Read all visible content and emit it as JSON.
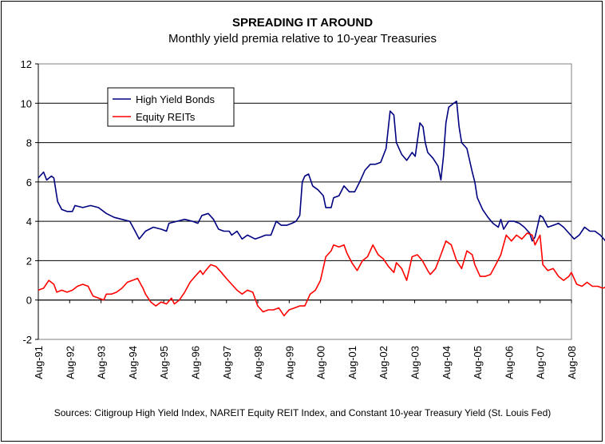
{
  "chart_data": {
    "type": "line",
    "title": "SPREADING IT AROUND",
    "subtitle": "Monthly yield premia relative to 10-year Treasuries",
    "source": "Sources: Citigroup High Yield Index, NAREIT Equity REIT Index, and Constant 10-year Treasury Yield (St. Louis Fed)",
    "ylim": [
      -2,
      12
    ],
    "yticks": [
      "-2",
      "0",
      "2",
      "4",
      "6",
      "8",
      "10",
      "12"
    ],
    "xtick_labels": [
      "Aug-91",
      "Aug-92",
      "Aug-93",
      "Aug-94",
      "Aug-95",
      "Aug-96",
      "Aug-97",
      "Aug-98",
      "Aug-99",
      "Aug-00",
      "Aug-01",
      "Aug-02",
      "Aug-03",
      "Aug-04",
      "Aug-05",
      "Aug-06",
      "Aug-07",
      "Aug-08"
    ],
    "grid": "horizontal",
    "legend_position": "upper-left",
    "x_start_year": 1991.583,
    "series": [
      {
        "name": "High Yield Bonds",
        "color": "#000080",
        "points": [
          [
            1991.58,
            6.2
          ],
          [
            1991.75,
            6.5
          ],
          [
            1991.85,
            6.1
          ],
          [
            1992.0,
            6.3
          ],
          [
            1992.08,
            6.2
          ],
          [
            1992.2,
            5.0
          ],
          [
            1992.33,
            4.6
          ],
          [
            1992.5,
            4.5
          ],
          [
            1992.67,
            4.5
          ],
          [
            1992.75,
            4.8
          ],
          [
            1993.0,
            4.7
          ],
          [
            1993.25,
            4.8
          ],
          [
            1993.5,
            4.7
          ],
          [
            1993.75,
            4.4
          ],
          [
            1994.0,
            4.2
          ],
          [
            1994.25,
            4.1
          ],
          [
            1994.5,
            4.0
          ],
          [
            1994.67,
            3.5
          ],
          [
            1994.8,
            3.1
          ],
          [
            1995.0,
            3.5
          ],
          [
            1995.25,
            3.7
          ],
          [
            1995.5,
            3.6
          ],
          [
            1995.67,
            3.5
          ],
          [
            1995.75,
            3.9
          ],
          [
            1996.0,
            4.0
          ],
          [
            1996.25,
            4.1
          ],
          [
            1996.5,
            4.0
          ],
          [
            1996.67,
            3.9
          ],
          [
            1996.8,
            4.3
          ],
          [
            1997.0,
            4.4
          ],
          [
            1997.17,
            4.1
          ],
          [
            1997.33,
            3.6
          ],
          [
            1997.5,
            3.5
          ],
          [
            1997.67,
            3.5
          ],
          [
            1997.75,
            3.3
          ],
          [
            1997.92,
            3.5
          ],
          [
            1998.08,
            3.1
          ],
          [
            1998.25,
            3.3
          ],
          [
            1998.5,
            3.1
          ],
          [
            1998.67,
            3.2
          ],
          [
            1998.83,
            3.3
          ],
          [
            1999.0,
            3.3
          ],
          [
            1999.17,
            4.0
          ],
          [
            1999.33,
            3.8
          ],
          [
            1999.5,
            3.8
          ],
          [
            1999.67,
            3.9
          ],
          [
            1999.8,
            4.0
          ],
          [
            1999.92,
            4.3
          ],
          [
            2000.0,
            6.0
          ],
          [
            2000.08,
            6.3
          ],
          [
            2000.2,
            6.4
          ],
          [
            2000.33,
            5.8
          ],
          [
            2000.5,
            5.6
          ],
          [
            2000.67,
            5.3
          ],
          [
            2000.75,
            4.7
          ],
          [
            2000.92,
            4.7
          ],
          [
            2001.0,
            5.2
          ],
          [
            2001.17,
            5.3
          ],
          [
            2001.33,
            5.8
          ],
          [
            2001.5,
            5.5
          ],
          [
            2001.67,
            5.5
          ],
          [
            2001.83,
            6.0
          ],
          [
            2002.0,
            6.6
          ],
          [
            2002.17,
            6.9
          ],
          [
            2002.33,
            6.9
          ],
          [
            2002.5,
            7.0
          ],
          [
            2002.67,
            7.7
          ],
          [
            2002.8,
            9.6
          ],
          [
            2002.92,
            9.4
          ],
          [
            2003.0,
            8.0
          ],
          [
            2003.17,
            7.4
          ],
          [
            2003.33,
            7.1
          ],
          [
            2003.5,
            7.5
          ],
          [
            2003.6,
            7.3
          ],
          [
            2003.75,
            9.0
          ],
          [
            2003.85,
            8.8
          ],
          [
            2003.92,
            8.0
          ],
          [
            2004.0,
            7.5
          ],
          [
            2004.17,
            7.2
          ],
          [
            2004.33,
            6.8
          ],
          [
            2004.42,
            6.1
          ],
          [
            2004.5,
            7.3
          ],
          [
            2004.58,
            9.0
          ],
          [
            2004.67,
            9.8
          ],
          [
            2004.83,
            10.0
          ],
          [
            2004.92,
            10.1
          ],
          [
            2005.0,
            8.8
          ],
          [
            2005.08,
            8.0
          ],
          [
            2005.25,
            7.7
          ],
          [
            2005.42,
            6.5
          ],
          [
            2005.5,
            6.0
          ],
          [
            2005.58,
            5.2
          ],
          [
            2005.75,
            4.6
          ],
          [
            2005.92,
            4.2
          ],
          [
            2006.08,
            3.9
          ],
          [
            2006.25,
            3.7
          ],
          [
            2006.33,
            4.1
          ],
          [
            2006.42,
            3.6
          ],
          [
            2006.58,
            4.0
          ],
          [
            2006.75,
            4.0
          ],
          [
            2006.92,
            3.9
          ],
          [
            2007.08,
            3.7
          ],
          [
            2007.25,
            3.4
          ],
          [
            2007.33,
            3.0
          ],
          [
            2007.42,
            3.2
          ],
          [
            2007.58,
            4.3
          ],
          [
            2007.67,
            4.2
          ],
          [
            2007.83,
            3.7
          ],
          [
            2008.0,
            3.8
          ],
          [
            2008.17,
            3.9
          ],
          [
            2008.33,
            3.7
          ],
          [
            2008.5,
            3.4
          ],
          [
            2008.67,
            3.1
          ],
          [
            2008.83,
            3.3
          ],
          [
            2009.0,
            3.7
          ],
          [
            2009.17,
            3.5
          ],
          [
            2009.33,
            3.5
          ],
          [
            2009.5,
            3.3
          ],
          [
            2009.67,
            3.0
          ],
          [
            2009.83,
            3.0
          ],
          [
            2010.0,
            2.9
          ],
          [
            2010.08,
            2.6
          ],
          [
            2010.17,
            2.7
          ],
          [
            2010.33,
            3.5
          ],
          [
            2010.42,
            4.4
          ],
          [
            2010.5,
            4.4
          ],
          [
            2010.58,
            4.2
          ],
          [
            2010.67,
            4.6
          ],
          [
            2010.83,
            5.4
          ],
          [
            2011.0,
            6.2
          ],
          [
            2011.17,
            7.1
          ],
          [
            2011.25,
            7.2
          ],
          [
            2011.33,
            6.3
          ],
          [
            2011.42,
            6.0
          ],
          [
            2011.5,
            6.1
          ],
          [
            2011.58,
            7.0
          ],
          [
            2011.67,
            7.7
          ]
        ]
      },
      {
        "name": "Equity REITs",
        "color": "#ff0000",
        "points": [
          [
            1991.58,
            0.5
          ],
          [
            1991.75,
            0.6
          ],
          [
            1991.92,
            1.0
          ],
          [
            1992.08,
            0.8
          ],
          [
            1992.17,
            0.4
          ],
          [
            1992.33,
            0.5
          ],
          [
            1992.5,
            0.4
          ],
          [
            1992.67,
            0.5
          ],
          [
            1992.83,
            0.7
          ],
          [
            1993.0,
            0.8
          ],
          [
            1993.17,
            0.7
          ],
          [
            1993.33,
            0.2
          ],
          [
            1993.5,
            0.1
          ],
          [
            1993.67,
            0.0
          ],
          [
            1993.75,
            0.3
          ],
          [
            1993.92,
            0.3
          ],
          [
            1994.08,
            0.4
          ],
          [
            1994.25,
            0.6
          ],
          [
            1994.42,
            0.9
          ],
          [
            1994.58,
            1.0
          ],
          [
            1994.75,
            1.1
          ],
          [
            1994.92,
            0.6
          ],
          [
            1995.0,
            0.3
          ],
          [
            1995.17,
            -0.1
          ],
          [
            1995.33,
            -0.3
          ],
          [
            1995.5,
            -0.1
          ],
          [
            1995.67,
            -0.2
          ],
          [
            1995.83,
            0.1
          ],
          [
            1995.92,
            -0.2
          ],
          [
            1996.08,
            0.0
          ],
          [
            1996.25,
            0.4
          ],
          [
            1996.42,
            0.9
          ],
          [
            1996.58,
            1.2
          ],
          [
            1996.75,
            1.5
          ],
          [
            1996.83,
            1.3
          ],
          [
            1996.92,
            1.5
          ],
          [
            1997.08,
            1.8
          ],
          [
            1997.25,
            1.7
          ],
          [
            1997.42,
            1.4
          ],
          [
            1997.58,
            1.1
          ],
          [
            1997.75,
            0.8
          ],
          [
            1997.92,
            0.5
          ],
          [
            1998.08,
            0.3
          ],
          [
            1998.25,
            0.5
          ],
          [
            1998.42,
            0.4
          ],
          [
            1998.58,
            -0.3
          ],
          [
            1998.75,
            -0.6
          ],
          [
            1998.92,
            -0.5
          ],
          [
            1999.08,
            -0.5
          ],
          [
            1999.25,
            -0.4
          ],
          [
            1999.42,
            -0.8
          ],
          [
            1999.58,
            -0.5
          ],
          [
            1999.75,
            -0.4
          ],
          [
            1999.92,
            -0.3
          ],
          [
            2000.08,
            -0.3
          ],
          [
            2000.25,
            0.3
          ],
          [
            2000.42,
            0.5
          ],
          [
            2000.58,
            1.0
          ],
          [
            2000.75,
            2.2
          ],
          [
            2000.92,
            2.5
          ],
          [
            2001.0,
            2.8
          ],
          [
            2001.17,
            2.7
          ],
          [
            2001.33,
            2.8
          ],
          [
            2001.42,
            2.4
          ],
          [
            2001.58,
            1.9
          ],
          [
            2001.75,
            1.5
          ],
          [
            2001.92,
            2.0
          ],
          [
            2002.08,
            2.2
          ],
          [
            2002.25,
            2.8
          ],
          [
            2002.42,
            2.3
          ],
          [
            2002.58,
            2.1
          ],
          [
            2002.75,
            1.7
          ],
          [
            2002.92,
            1.4
          ],
          [
            2003.0,
            1.9
          ],
          [
            2003.17,
            1.6
          ],
          [
            2003.33,
            1.0
          ],
          [
            2003.5,
            2.2
          ],
          [
            2003.67,
            2.3
          ],
          [
            2003.83,
            2.0
          ],
          [
            2004.0,
            1.5
          ],
          [
            2004.08,
            1.3
          ],
          [
            2004.25,
            1.6
          ],
          [
            2004.42,
            2.3
          ],
          [
            2004.58,
            3.0
          ],
          [
            2004.75,
            2.8
          ],
          [
            2004.92,
            2.0
          ],
          [
            2005.08,
            1.6
          ],
          [
            2005.25,
            2.5
          ],
          [
            2005.42,
            2.3
          ],
          [
            2005.5,
            1.8
          ],
          [
            2005.67,
            1.2
          ],
          [
            2005.83,
            1.2
          ],
          [
            2006.0,
            1.3
          ],
          [
            2006.17,
            1.8
          ],
          [
            2006.33,
            2.3
          ],
          [
            2006.5,
            3.3
          ],
          [
            2006.67,
            3.0
          ],
          [
            2006.83,
            3.3
          ],
          [
            2007.0,
            3.1
          ],
          [
            2007.17,
            3.4
          ],
          [
            2007.33,
            3.3
          ],
          [
            2007.42,
            2.8
          ],
          [
            2007.58,
            3.3
          ],
          [
            2007.67,
            1.8
          ],
          [
            2007.83,
            1.5
          ],
          [
            2008.0,
            1.6
          ],
          [
            2008.17,
            1.2
          ],
          [
            2008.33,
            1.0
          ],
          [
            2008.5,
            1.2
          ],
          [
            2008.58,
            1.4
          ],
          [
            2008.75,
            0.8
          ],
          [
            2008.92,
            0.7
          ],
          [
            2009.08,
            0.9
          ],
          [
            2009.25,
            0.7
          ],
          [
            2009.42,
            0.7
          ],
          [
            2009.58,
            0.6
          ],
          [
            2009.75,
            0.7
          ],
          [
            2009.92,
            0.6
          ],
          [
            2010.08,
            0.6
          ],
          [
            2010.17,
            0.2
          ],
          [
            2010.33,
            0.3
          ],
          [
            2010.5,
            0.1
          ],
          [
            2010.67,
            -0.4
          ],
          [
            2010.83,
            -0.8
          ],
          [
            2011.0,
            -0.9
          ],
          [
            2011.17,
            -0.9
          ],
          [
            2011.33,
            -1.0
          ],
          [
            2011.5,
            -0.9
          ],
          [
            2011.67,
            -1.0
          ],
          [
            2011.83,
            -1.3
          ],
          [
            2012.0,
            -0.9
          ],
          [
            2012.17,
            -0.9
          ],
          [
            2012.33,
            -0.4
          ],
          [
            2012.5,
            0.5
          ],
          [
            2012.67,
            1.1
          ],
          [
            2012.83,
            1.5
          ],
          [
            2013.0,
            1.2
          ],
          [
            2013.08,
            0.8
          ],
          [
            2013.17,
            1.2
          ],
          [
            2013.33,
            1.2
          ]
        ]
      }
    ]
  }
}
